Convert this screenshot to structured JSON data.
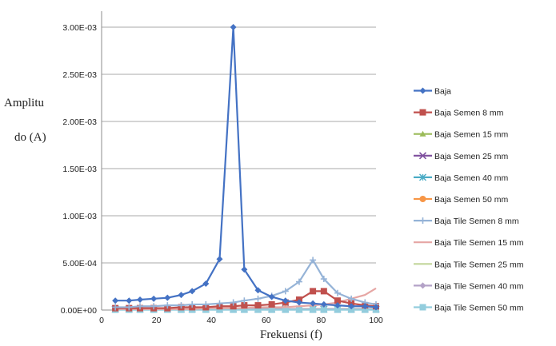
{
  "chart_data": {
    "type": "line",
    "ylabel_lines": [
      "Amplitu",
      "do (A)"
    ],
    "xlabel": "Frekuensi (f)",
    "xlim": [
      0,
      100
    ],
    "ylim": [
      0,
      0.003
    ],
    "x_ticks": [
      0,
      20,
      40,
      60,
      80,
      100
    ],
    "x_tick_labels": [
      "0",
      "20",
      "40",
      "60",
      "80",
      "100"
    ],
    "y_ticks": [
      0,
      0.0005,
      0.001,
      0.0015,
      0.002,
      0.0025,
      0.003
    ],
    "y_tick_labels": [
      "0.00E+00",
      "5.00E-04",
      "1.00E-03",
      "1.50E-03",
      "2.00E-03",
      "2.50E-03",
      "3.00E-03"
    ],
    "grid": {
      "horizontal": true,
      "vertical": false
    },
    "legend_position": "right",
    "x": [
      5,
      10,
      14,
      19,
      24,
      29,
      33,
      38,
      43,
      48,
      52,
      57,
      62,
      67,
      72,
      77,
      81,
      86,
      91,
      96,
      100
    ],
    "series": [
      {
        "name": "Baja",
        "color": "#4472C4",
        "marker": "diamond",
        "values": [
          0.0001,
          0.0001,
          0.00011,
          0.00012,
          0.00013,
          0.00016,
          0.0002,
          0.00028,
          0.00054,
          0.003,
          0.00043,
          0.00021,
          0.00014,
          0.0001,
          8e-05,
          7e-05,
          6e-05,
          5e-05,
          4e-05,
          4e-05,
          3e-05
        ]
      },
      {
        "name": "Baja Semen 8 mm",
        "color": "#C0504D",
        "marker": "square",
        "values": [
          2e-05,
          2e-05,
          2e-05,
          2e-05,
          2e-05,
          3e-05,
          3e-05,
          3e-05,
          4e-05,
          4e-05,
          5e-05,
          5e-05,
          6e-05,
          8e-05,
          0.00011,
          0.0002,
          0.0002,
          0.0001,
          7e-05,
          5e-05,
          4e-05
        ]
      },
      {
        "name": "Baja Semen 15 mm",
        "color": "#9BBB59",
        "marker": "triangle",
        "values": [
          1e-05,
          1e-05,
          1e-05,
          1e-05,
          1e-05,
          1e-05,
          1e-05,
          1e-05,
          1e-05,
          1e-05,
          1e-05,
          1e-05,
          1e-05,
          1e-05,
          1e-05,
          1e-05,
          1e-05,
          1e-05,
          1e-05,
          1e-05,
          1e-05
        ]
      },
      {
        "name": "Baja Semen 25 mm",
        "color": "#7E4F9E",
        "marker": "x",
        "values": [
          1e-05,
          1e-05,
          1e-05,
          1e-05,
          1e-05,
          1e-05,
          1e-05,
          1e-05,
          1e-05,
          1e-05,
          1e-05,
          1e-05,
          1e-05,
          1e-05,
          1e-05,
          1e-05,
          1e-05,
          1e-05,
          1e-05,
          1e-05,
          1e-05
        ]
      },
      {
        "name": "Baja Semen 40 mm",
        "color": "#4BACC6",
        "marker": "star",
        "values": [
          1e-05,
          1e-05,
          1e-05,
          1e-05,
          1e-05,
          1e-05,
          1e-05,
          1e-05,
          1e-05,
          1e-05,
          1e-05,
          1e-05,
          1e-05,
          1e-05,
          1e-05,
          1e-05,
          1e-05,
          1e-05,
          1e-05,
          1e-05,
          1e-05
        ]
      },
      {
        "name": "Baja Semen 50 mm",
        "color": "#F79646",
        "marker": "circle",
        "values": [
          1e-05,
          1e-05,
          1e-05,
          1e-05,
          1e-05,
          1e-05,
          1e-05,
          1e-05,
          1e-05,
          1e-05,
          1e-05,
          1e-05,
          1e-05,
          1e-05,
          1e-05,
          1e-05,
          1e-05,
          1e-05,
          1e-05,
          1e-05,
          1e-05
        ]
      },
      {
        "name": "Baja Tile Semen 8 mm",
        "color": "#95B3D7",
        "marker": "plus",
        "values": [
          3e-05,
          3e-05,
          4e-05,
          4e-05,
          5e-05,
          5e-05,
          6e-05,
          6e-05,
          7e-05,
          8e-05,
          0.0001,
          0.00012,
          0.00015,
          0.0002,
          0.0003,
          0.00053,
          0.00033,
          0.00018,
          0.00012,
          8e-05,
          6e-05
        ]
      },
      {
        "name": "Baja Tile Semen 15 mm",
        "color": "#E6A6A4",
        "marker": "none",
        "values": [
          1e-05,
          1e-05,
          1e-05,
          1e-05,
          1e-05,
          1e-05,
          1e-05,
          2e-05,
          2e-05,
          2e-05,
          2e-05,
          3e-05,
          3e-05,
          3e-05,
          4e-05,
          5e-05,
          6e-05,
          8e-05,
          0.00012,
          0.00016,
          0.00023
        ]
      },
      {
        "name": "Baja Tile Semen 25 mm",
        "color": "#C3D69B",
        "marker": "none",
        "values": [
          1e-05,
          1e-05,
          1e-05,
          1e-05,
          1e-05,
          1e-05,
          1e-05,
          1e-05,
          1e-05,
          1e-05,
          1e-05,
          1e-05,
          1e-05,
          1e-05,
          1e-05,
          1e-05,
          1e-05,
          1e-05,
          1e-05,
          1e-05,
          1e-05
        ]
      },
      {
        "name": "Baja Tile Semen 40 mm",
        "color": "#B3A2C7",
        "marker": "diamond",
        "values": [
          1e-05,
          1e-05,
          1e-05,
          1e-05,
          1e-05,
          1e-05,
          1e-05,
          1e-05,
          1e-05,
          1e-05,
          1e-05,
          1e-05,
          1e-05,
          1e-05,
          1e-05,
          1e-05,
          1e-05,
          1e-05,
          1e-05,
          1e-05,
          1e-05
        ]
      },
      {
        "name": "Baja Tile Semen 50 mm",
        "color": "#93CDDD",
        "marker": "square",
        "values": [
          3e-06,
          3e-06,
          3e-06,
          3e-06,
          3e-06,
          3e-06,
          3e-06,
          3e-06,
          3e-06,
          3e-06,
          3e-06,
          3e-06,
          3e-06,
          3e-06,
          3e-06,
          3e-06,
          3e-06,
          3e-06,
          3e-06,
          3e-06,
          3e-06
        ]
      }
    ]
  }
}
